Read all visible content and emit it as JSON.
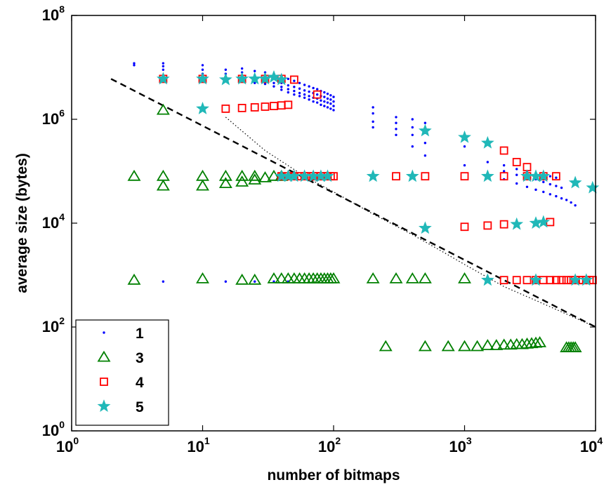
{
  "chart_data": {
    "type": "scatter",
    "xscale": "log",
    "yscale": "log",
    "xlim": [
      1,
      10000
    ],
    "ylim": [
      1,
      100000000
    ],
    "xlabel": "number of bitmaps",
    "ylabel": "average size (bytes)",
    "grid": false,
    "legend_position": "bottom-left",
    "x_ticks": [
      {
        "base": "10",
        "exp": "0",
        "value": 1
      },
      {
        "base": "10",
        "exp": "1",
        "value": 10
      },
      {
        "base": "10",
        "exp": "2",
        "value": 100
      },
      {
        "base": "10",
        "exp": "3",
        "value": 1000
      },
      {
        "base": "10",
        "exp": "4",
        "value": 10000
      }
    ],
    "y_ticks": [
      {
        "base": "10",
        "exp": "0",
        "value": 1
      },
      {
        "base": "10",
        "exp": "2",
        "value": 100
      },
      {
        "base": "10",
        "exp": "4",
        "value": 10000
      },
      {
        "base": "10",
        "exp": "6",
        "value": 1000000
      },
      {
        "base": "10",
        "exp": "8",
        "value": 100000000
      }
    ],
    "reference_lines": [
      {
        "style": "dashed",
        "color": "#000000",
        "x": [
          2,
          10000
        ],
        "y": [
          6000000,
          100
        ]
      },
      {
        "style": "dotted",
        "color": "#000000",
        "x": [
          15,
          30,
          60,
          100,
          200,
          400,
          700,
          1000,
          2000,
          4000,
          10000
        ],
        "y": [
          1100000,
          250000,
          80000,
          40000,
          15000,
          6000,
          2700,
          1600,
          600,
          280,
          100
        ]
      }
    ],
    "series": [
      {
        "name": "1",
        "marker": "dot",
        "color": "#0000ff",
        "points": [
          [
            3,
            12000000
          ],
          [
            3,
            11000000
          ],
          [
            5,
            12000000
          ],
          [
            5,
            10500000
          ],
          [
            5,
            9000000
          ],
          [
            5,
            6000000
          ],
          [
            10,
            11000000
          ],
          [
            10,
            9000000
          ],
          [
            10,
            7500000
          ],
          [
            10,
            6500000
          ],
          [
            10,
            5500000
          ],
          [
            15,
            9000000
          ],
          [
            15,
            7500000
          ],
          [
            15,
            6500000
          ],
          [
            15,
            5500000
          ],
          [
            20,
            9500000
          ],
          [
            20,
            8000000
          ],
          [
            20,
            6800000
          ],
          [
            20,
            5800000
          ],
          [
            25,
            8500000
          ],
          [
            25,
            7000000
          ],
          [
            25,
            6000000
          ],
          [
            25,
            5000000
          ],
          [
            30,
            8000000
          ],
          [
            30,
            6500000
          ],
          [
            30,
            5500000
          ],
          [
            30,
            4800000
          ],
          [
            35,
            7500000
          ],
          [
            35,
            6000000
          ],
          [
            35,
            5000000
          ],
          [
            35,
            4300000
          ],
          [
            40,
            6500000
          ],
          [
            40,
            5000000
          ],
          [
            40,
            4200000
          ],
          [
            40,
            3700000
          ],
          [
            45,
            6000000
          ],
          [
            45,
            4500000
          ],
          [
            45,
            3800000
          ],
          [
            45,
            3300000
          ],
          [
            50,
            5500000
          ],
          [
            50,
            4200000
          ],
          [
            50,
            3500000
          ],
          [
            50,
            3000000
          ],
          [
            55,
            5000000
          ],
          [
            55,
            3900000
          ],
          [
            55,
            3200000
          ],
          [
            55,
            2800000
          ],
          [
            60,
            4600000
          ],
          [
            60,
            3600000
          ],
          [
            60,
            3000000
          ],
          [
            60,
            2600000
          ],
          [
            65,
            4300000
          ],
          [
            65,
            3400000
          ],
          [
            65,
            2800000
          ],
          [
            65,
            2400000
          ],
          [
            70,
            4000000
          ],
          [
            70,
            3200000
          ],
          [
            70,
            2600000
          ],
          [
            70,
            2200000
          ],
          [
            75,
            3800000
          ],
          [
            75,
            3000000
          ],
          [
            75,
            2500000
          ],
          [
            75,
            2100000
          ],
          [
            80,
            3500000
          ],
          [
            80,
            2800000
          ],
          [
            80,
            2300000
          ],
          [
            80,
            1900000
          ],
          [
            85,
            3300000
          ],
          [
            85,
            2700000
          ],
          [
            85,
            2200000
          ],
          [
            85,
            1800000
          ],
          [
            90,
            3100000
          ],
          [
            90,
            2500000
          ],
          [
            90,
            2100000
          ],
          [
            90,
            1700000
          ],
          [
            95,
            2900000
          ],
          [
            95,
            2400000
          ],
          [
            95,
            2000000
          ],
          [
            95,
            1600000
          ],
          [
            100,
            2700000
          ],
          [
            100,
            2200000
          ],
          [
            100,
            1800000
          ],
          [
            100,
            1500000
          ],
          [
            5,
            750
          ],
          [
            15,
            750
          ],
          [
            25,
            750
          ],
          [
            35,
            750
          ],
          [
            45,
            750
          ],
          [
            200,
            1700000
          ],
          [
            200,
            1300000
          ],
          [
            200,
            900000
          ],
          [
            200,
            700000
          ],
          [
            300,
            1100000
          ],
          [
            300,
            850000
          ],
          [
            300,
            650000
          ],
          [
            300,
            500000
          ],
          [
            400,
            1000000
          ],
          [
            400,
            700000
          ],
          [
            400,
            500000
          ],
          [
            400,
            300000
          ],
          [
            500,
            850000
          ],
          [
            500,
            550000
          ],
          [
            500,
            350000
          ],
          [
            500,
            200000
          ],
          [
            1000,
            300000
          ],
          [
            1000,
            130000
          ],
          [
            1500,
            150000
          ],
          [
            2000,
            130000
          ],
          [
            2500,
            110000
          ],
          [
            3000,
            100000
          ],
          [
            3500,
            90000
          ],
          [
            4000,
            85000
          ],
          [
            4500,
            80000
          ],
          [
            5000,
            75000
          ],
          [
            2000,
            100000
          ],
          [
            2500,
            85000
          ],
          [
            3000,
            75000
          ],
          [
            3500,
            70000
          ],
          [
            4000,
            62000
          ],
          [
            4500,
            56000
          ],
          [
            5000,
            52000
          ],
          [
            5500,
            48000
          ],
          [
            2000,
            70000
          ],
          [
            2500,
            58000
          ],
          [
            3000,
            50000
          ],
          [
            3500,
            44000
          ],
          [
            4000,
            40000
          ],
          [
            4500,
            36000
          ],
          [
            5000,
            33000
          ],
          [
            5500,
            30000
          ],
          [
            6000,
            28000
          ],
          [
            6500,
            25000
          ],
          [
            7000,
            22000
          ]
        ]
      },
      {
        "name": "3",
        "marker": "triangle",
        "color": "#008000",
        "points": [
          [
            3,
            80000
          ],
          [
            5,
            80000
          ],
          [
            5,
            52000
          ],
          [
            5,
            1500000
          ],
          [
            10,
            80000
          ],
          [
            10,
            52000
          ],
          [
            15,
            80000
          ],
          [
            15,
            58000
          ],
          [
            20,
            80000
          ],
          [
            20,
            62000
          ],
          [
            25,
            80000
          ],
          [
            25,
            68000
          ],
          [
            30,
            75000
          ],
          [
            35,
            80000
          ],
          [
            40,
            80000
          ],
          [
            3,
            800
          ],
          [
            10,
            850
          ],
          [
            20,
            800
          ],
          [
            25,
            800
          ],
          [
            35,
            850
          ],
          [
            40,
            850
          ],
          [
            45,
            850
          ],
          [
            50,
            850
          ],
          [
            55,
            850
          ],
          [
            60,
            850
          ],
          [
            65,
            850
          ],
          [
            70,
            850
          ],
          [
            75,
            850
          ],
          [
            80,
            850
          ],
          [
            85,
            850
          ],
          [
            90,
            850
          ],
          [
            95,
            850
          ],
          [
            100,
            850
          ],
          [
            200,
            850
          ],
          [
            300,
            850
          ],
          [
            400,
            850
          ],
          [
            500,
            850
          ],
          [
            1000,
            850
          ],
          [
            250,
            42
          ],
          [
            500,
            42
          ],
          [
            750,
            42
          ],
          [
            1000,
            42
          ],
          [
            1250,
            42
          ],
          [
            1500,
            44
          ],
          [
            1750,
            44
          ],
          [
            2000,
            45
          ],
          [
            2250,
            45
          ],
          [
            2500,
            46
          ],
          [
            2750,
            46
          ],
          [
            3000,
            47
          ],
          [
            3250,
            48
          ],
          [
            3500,
            49
          ],
          [
            3750,
            50
          ],
          [
            6000,
            40
          ],
          [
            6250,
            40
          ],
          [
            6500,
            40
          ],
          [
            6750,
            40
          ],
          [
            7000,
            40
          ]
        ]
      },
      {
        "name": "4",
        "marker": "square",
        "color": "#ff0000",
        "points": [
          [
            5,
            6000000
          ],
          [
            10,
            6000000
          ],
          [
            20,
            6000000
          ],
          [
            30,
            6000000
          ],
          [
            40,
            6000000
          ],
          [
            50,
            5800000
          ],
          [
            15,
            1600000
          ],
          [
            20,
            1650000
          ],
          [
            25,
            1700000
          ],
          [
            30,
            1750000
          ],
          [
            35,
            1800000
          ],
          [
            40,
            1850000
          ],
          [
            45,
            1900000
          ],
          [
            75,
            3000000
          ],
          [
            40,
            80000
          ],
          [
            45,
            80000
          ],
          [
            50,
            80000
          ],
          [
            55,
            80000
          ],
          [
            60,
            80000
          ],
          [
            65,
            80000
          ],
          [
            70,
            80000
          ],
          [
            75,
            80000
          ],
          [
            80,
            80000
          ],
          [
            85,
            80000
          ],
          [
            90,
            80000
          ],
          [
            95,
            80000
          ],
          [
            100,
            80000
          ],
          [
            300,
            80000
          ],
          [
            500,
            80000
          ],
          [
            1000,
            80000
          ],
          [
            2000,
            80000
          ],
          [
            3000,
            80000
          ],
          [
            4000,
            80000
          ],
          [
            5000,
            80000
          ],
          [
            2000,
            250000
          ],
          [
            2500,
            150000
          ],
          [
            3000,
            120000
          ],
          [
            1000,
            8500
          ],
          [
            1500,
            9000
          ],
          [
            2000,
            9500
          ],
          [
            4500,
            10500
          ],
          [
            2000,
            800
          ],
          [
            2500,
            800
          ],
          [
            3000,
            800
          ],
          [
            3500,
            800
          ],
          [
            4000,
            800
          ],
          [
            4500,
            800
          ],
          [
            5000,
            800
          ],
          [
            5500,
            800
          ],
          [
            6000,
            800
          ],
          [
            6500,
            800
          ],
          [
            7000,
            800
          ],
          [
            7500,
            800
          ],
          [
            8000,
            800
          ],
          [
            8500,
            800
          ],
          [
            9000,
            800
          ],
          [
            9500,
            800
          ]
        ]
      },
      {
        "name": "5",
        "marker": "star",
        "color": "#20b8b8",
        "points": [
          [
            5,
            6000000
          ],
          [
            10,
            6000000
          ],
          [
            15,
            5800000
          ],
          [
            20,
            6000000
          ],
          [
            25,
            6000000
          ],
          [
            30,
            6000000
          ],
          [
            35,
            6500000
          ],
          [
            40,
            5800000
          ],
          [
            10,
            1600000
          ],
          [
            40,
            80000
          ],
          [
            45,
            80000
          ],
          [
            50,
            80000
          ],
          [
            60,
            80000
          ],
          [
            70,
            80000
          ],
          [
            80,
            80000
          ],
          [
            90,
            80000
          ],
          [
            200,
            80000
          ],
          [
            400,
            80000
          ],
          [
            1500,
            80000
          ],
          [
            3000,
            80000
          ],
          [
            3500,
            80000
          ],
          [
            4000,
            80000
          ],
          [
            500,
            600000
          ],
          [
            1000,
            450000
          ],
          [
            1500,
            350000
          ],
          [
            7000,
            60000
          ],
          [
            9500,
            48000
          ],
          [
            500,
            8000
          ],
          [
            2500,
            9500
          ],
          [
            3500,
            10000
          ],
          [
            4000,
            10500
          ],
          [
            1500,
            800
          ],
          [
            3500,
            800
          ],
          [
            7000,
            800
          ],
          [
            8500,
            800
          ]
        ]
      }
    ]
  }
}
